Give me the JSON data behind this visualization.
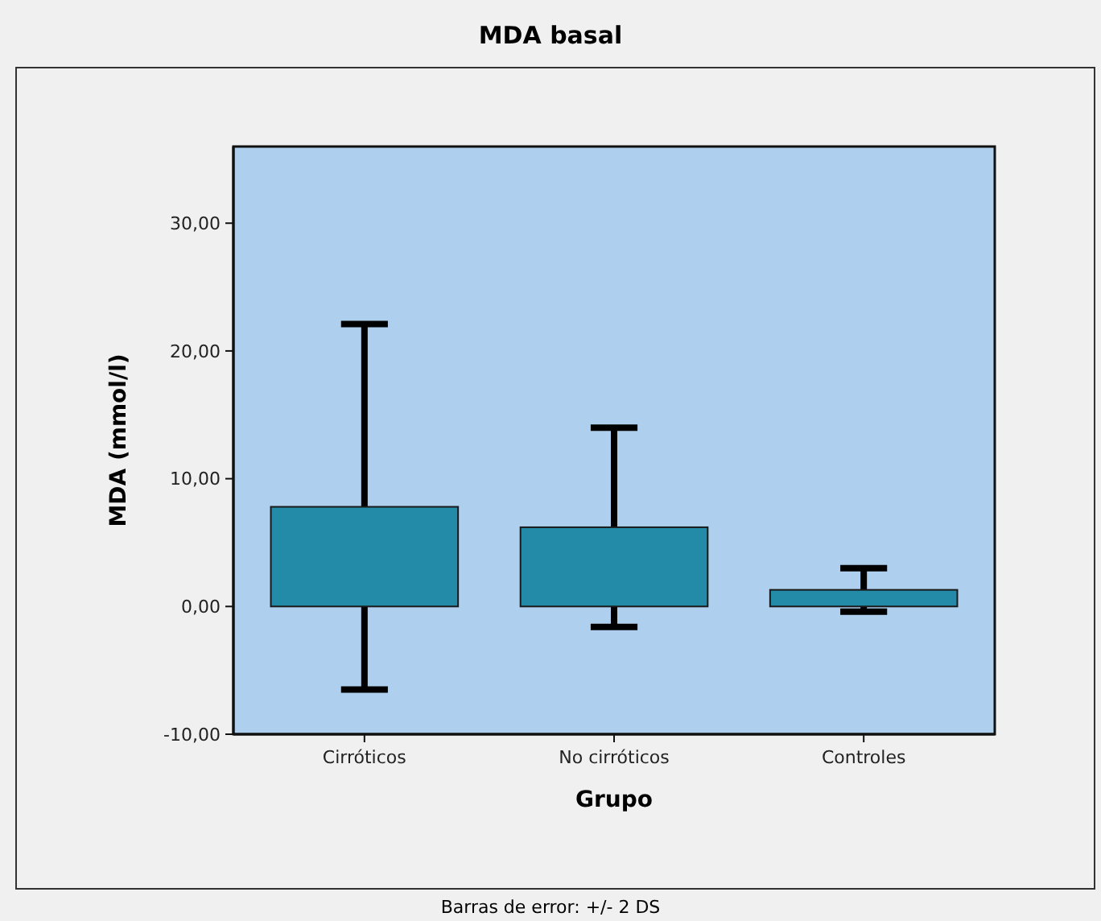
{
  "chart_data": {
    "type": "bar",
    "title": "MDA basal",
    "xlabel": "Grupo",
    "ylabel": "MDA (mmol/l)",
    "categories": [
      "Cirróticos",
      "No cirróticos",
      "Controles"
    ],
    "values": [
      7.8,
      6.2,
      1.3
    ],
    "errors": [
      14.3,
      7.8,
      1.7
    ],
    "color": "#238aa8",
    "ylim": [
      -10,
      36
    ],
    "yticks": [
      {
        "value": -10,
        "label": "-10,00"
      },
      {
        "value": 0,
        "label": "0,00"
      },
      {
        "value": 10,
        "label": "10,00"
      },
      {
        "value": 20,
        "label": "20,00"
      },
      {
        "value": 30,
        "label": "30,00"
      }
    ],
    "grid": false,
    "annotations": [
      "Barras de error: +/- 2 DS"
    ]
  }
}
